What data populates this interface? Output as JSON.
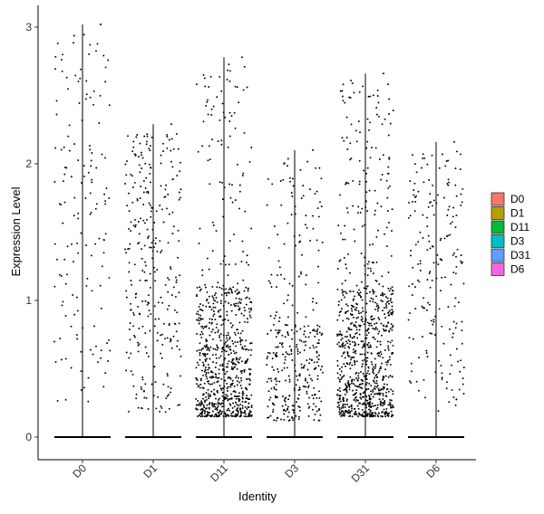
{
  "chart_data": {
    "type": "scatter",
    "subtype": "violin-jitter",
    "xlabel": "Identity",
    "ylabel": "Expression Level",
    "ylim": [
      -0.18,
      3.05
    ],
    "yticks": [
      0,
      1,
      2,
      3
    ],
    "categories": [
      "D0",
      "D1",
      "D11",
      "D3",
      "D31",
      "D6"
    ],
    "max_values": [
      3.02,
      2.29,
      2.78,
      2.1,
      2.66,
      2.16
    ],
    "approx_nonzero_cell_counts": [
      150,
      300,
      800,
      350,
      900,
      200
    ],
    "legend": {
      "placement": "right",
      "entries": [
        {
          "label": "D0",
          "color": "#F8766D"
        },
        {
          "label": "D1",
          "color": "#B79F00"
        },
        {
          "label": "D11",
          "color": "#00BA38"
        },
        {
          "label": "D3",
          "color": "#00BFC4"
        },
        {
          "label": "D31",
          "color": "#619CFF"
        },
        {
          "label": "D6",
          "color": "#F564E3"
        }
      ]
    },
    "grid": false,
    "point_color": "#000000"
  }
}
